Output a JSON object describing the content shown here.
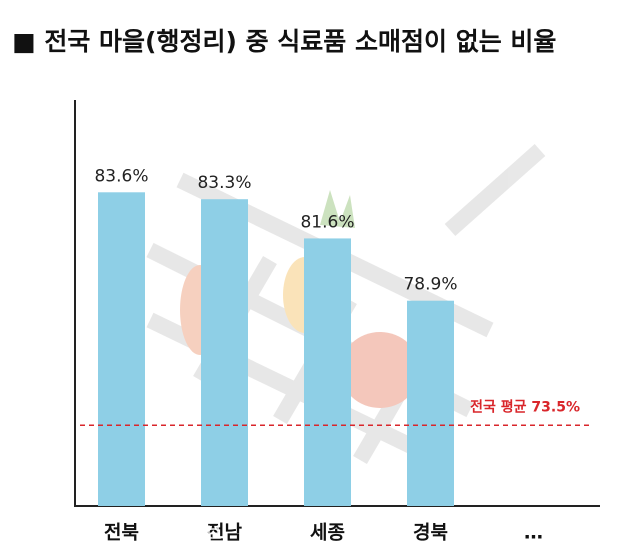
{
  "chart_data": {
    "type": "bar",
    "title": "■ 전국 마을(행정리) 중 식료품 소매점이 없는 비율",
    "categories": [
      "전북",
      "전남",
      "세종",
      "경북",
      "…"
    ],
    "values": [
      83.6,
      83.3,
      81.6,
      78.9,
      null
    ],
    "value_labels": [
      "83.6%",
      "83.3%",
      "81.6%",
      "78.9%",
      null
    ],
    "color": "#8ecfe6",
    "ylim": [
      70,
      85
    ],
    "reference_line": {
      "value": 73.5,
      "label": "전국 평균 73.5%",
      "color": "#d9262b"
    },
    "watermark": "전북일보"
  }
}
